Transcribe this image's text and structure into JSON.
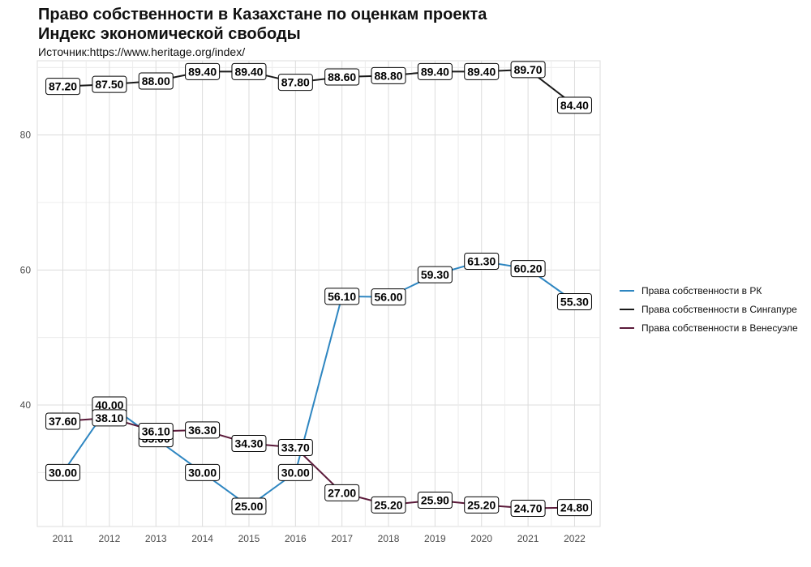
{
  "title_line1": "Право собственности в Казахстане по оценкам проекта",
  "title_line2": "Индекс экономической свободы",
  "subtitle": "Источник:https://www.heritage.org/index/",
  "chart_data": {
    "type": "line",
    "x": [
      2011,
      2012,
      2013,
      2014,
      2015,
      2016,
      2017,
      2018,
      2019,
      2020,
      2021,
      2022
    ],
    "ylim": [
      22,
      91
    ],
    "yticks": [
      40,
      60,
      80
    ],
    "grid": true,
    "legend_position": "right",
    "series": [
      {
        "name": "Права собственности в РК",
        "color": "#2e86c1",
        "values": [
          30.0,
          40.0,
          35.0,
          30.0,
          25.0,
          30.0,
          56.1,
          56.0,
          59.3,
          61.3,
          60.2,
          55.3
        ],
        "labels": [
          "30.00",
          "40.00",
          "35.00",
          "30.00",
          "25.00",
          "30.00",
          "56.10",
          "56.00",
          "59.30",
          "61.30",
          "60.20",
          "55.30"
        ]
      },
      {
        "name": "Права собственности в Сингапуре",
        "color": "#1a1a1a",
        "values": [
          87.2,
          87.5,
          88.0,
          89.4,
          89.4,
          87.8,
          88.6,
          88.8,
          89.4,
          89.4,
          89.7,
          84.4
        ],
        "labels": [
          "87.20",
          "87.50",
          "88.00",
          "89.40",
          "89.40",
          "87.80",
          "88.60",
          "88.80",
          "89.40",
          "89.40",
          "89.70",
          "84.40"
        ]
      },
      {
        "name": "Права собственности в Венесуэле",
        "color": "#5b1a3a",
        "values": [
          37.6,
          38.1,
          36.1,
          36.3,
          34.3,
          33.7,
          27.0,
          25.2,
          25.9,
          25.2,
          24.7,
          24.8
        ],
        "labels": [
          "37.60",
          "38.10",
          "36.10",
          "36.30",
          "34.30",
          "33.70",
          "27.00",
          "25.20",
          "25.90",
          "25.20",
          "24.70",
          "24.80"
        ]
      }
    ]
  }
}
